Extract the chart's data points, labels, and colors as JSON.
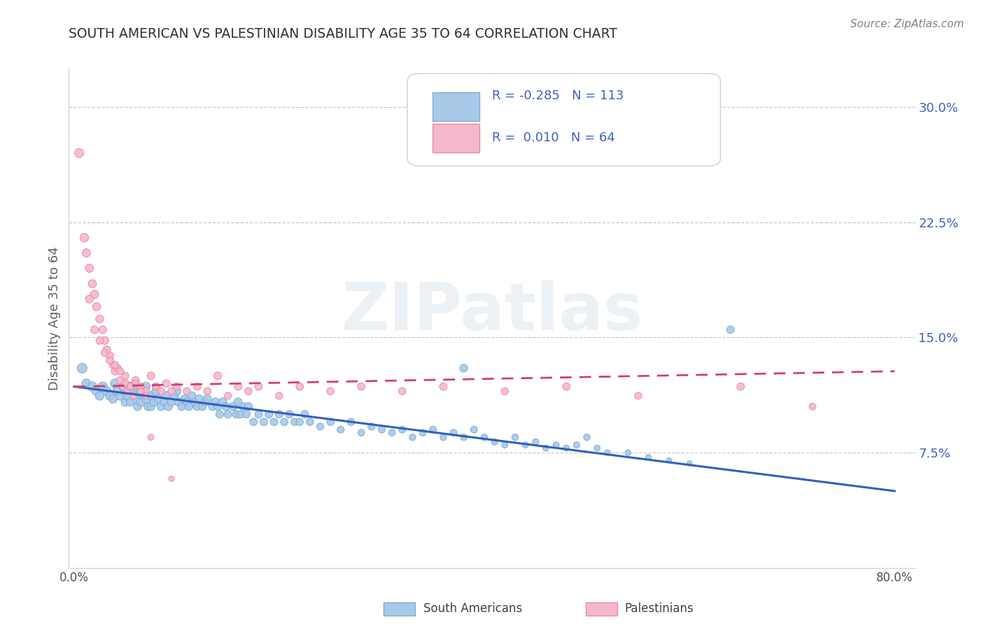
{
  "title": "SOUTH AMERICAN VS PALESTINIAN DISABILITY AGE 35 TO 64 CORRELATION CHART",
  "source": "Source: ZipAtlas.com",
  "ylabel": "Disability Age 35 to 64",
  "xlim": [
    -0.005,
    0.82
  ],
  "ylim": [
    0.0,
    0.325
  ],
  "ytick_positions": [
    0.075,
    0.15,
    0.225,
    0.3
  ],
  "ytick_labels": [
    "7.5%",
    "15.0%",
    "22.5%",
    "30.0%"
  ],
  "trend_blue_start": 0.118,
  "trend_blue_end": 0.05,
  "trend_pink_start": 0.118,
  "trend_pink_end": 0.128,
  "blue_scatter_color": "#a8c8e8",
  "blue_scatter_edge": "#7bafd4",
  "pink_scatter_color": "#f5b8cb",
  "pink_scatter_edge": "#e88aaa",
  "trend_blue_color": "#3060c0",
  "trend_pink_color": "#d04070",
  "legend_text_color": "#4060c0",
  "title_color": "#303030",
  "watermark": "ZIPatlas",
  "south_american_x": [
    0.008,
    0.012,
    0.018,
    0.022,
    0.025,
    0.028,
    0.032,
    0.035,
    0.038,
    0.04,
    0.042,
    0.045,
    0.048,
    0.05,
    0.05,
    0.052,
    0.055,
    0.055,
    0.058,
    0.06,
    0.06,
    0.062,
    0.065,
    0.065,
    0.068,
    0.07,
    0.07,
    0.072,
    0.075,
    0.075,
    0.078,
    0.08,
    0.082,
    0.085,
    0.088,
    0.09,
    0.092,
    0.095,
    0.098,
    0.1,
    0.102,
    0.105,
    0.108,
    0.11,
    0.112,
    0.115,
    0.118,
    0.12,
    0.122,
    0.125,
    0.128,
    0.13,
    0.135,
    0.138,
    0.14,
    0.142,
    0.145,
    0.148,
    0.15,
    0.155,
    0.158,
    0.16,
    0.162,
    0.165,
    0.168,
    0.17,
    0.175,
    0.18,
    0.185,
    0.19,
    0.195,
    0.2,
    0.205,
    0.21,
    0.215,
    0.22,
    0.225,
    0.23,
    0.24,
    0.25,
    0.26,
    0.27,
    0.28,
    0.29,
    0.3,
    0.31,
    0.32,
    0.33,
    0.34,
    0.35,
    0.36,
    0.37,
    0.38,
    0.39,
    0.4,
    0.38,
    0.41,
    0.42,
    0.43,
    0.44,
    0.45,
    0.46,
    0.47,
    0.48,
    0.49,
    0.5,
    0.51,
    0.52,
    0.54,
    0.56,
    0.58,
    0.6,
    0.64
  ],
  "south_american_y": [
    0.13,
    0.12,
    0.118,
    0.115,
    0.112,
    0.118,
    0.115,
    0.112,
    0.11,
    0.12,
    0.115,
    0.112,
    0.118,
    0.115,
    0.108,
    0.112,
    0.118,
    0.108,
    0.115,
    0.118,
    0.11,
    0.105,
    0.115,
    0.108,
    0.112,
    0.118,
    0.11,
    0.105,
    0.112,
    0.105,
    0.108,
    0.115,
    0.11,
    0.105,
    0.108,
    0.112,
    0.105,
    0.108,
    0.112,
    0.115,
    0.108,
    0.105,
    0.11,
    0.108,
    0.105,
    0.112,
    0.108,
    0.105,
    0.11,
    0.105,
    0.108,
    0.11,
    0.105,
    0.108,
    0.105,
    0.1,
    0.108,
    0.105,
    0.1,
    0.105,
    0.1,
    0.108,
    0.1,
    0.105,
    0.1,
    0.105,
    0.095,
    0.1,
    0.095,
    0.1,
    0.095,
    0.1,
    0.095,
    0.1,
    0.095,
    0.095,
    0.1,
    0.095,
    0.092,
    0.095,
    0.09,
    0.095,
    0.088,
    0.092,
    0.09,
    0.088,
    0.09,
    0.085,
    0.088,
    0.09,
    0.085,
    0.088,
    0.085,
    0.09,
    0.085,
    0.13,
    0.082,
    0.08,
    0.085,
    0.08,
    0.082,
    0.078,
    0.08,
    0.078,
    0.08,
    0.085,
    0.078,
    0.075,
    0.075,
    0.072,
    0.07,
    0.068,
    0.155
  ],
  "south_american_size": [
    100,
    85,
    90,
    85,
    80,
    90,
    85,
    80,
    78,
    88,
    82,
    78,
    85,
    82,
    75,
    78,
    82,
    72,
    78,
    82,
    75,
    70,
    78,
    72,
    75,
    80,
    72,
    68,
    75,
    68,
    72,
    78,
    72,
    68,
    70,
    75,
    68,
    70,
    72,
    75,
    70,
    65,
    70,
    68,
    65,
    70,
    68,
    65,
    68,
    65,
    68,
    70,
    65,
    68,
    65,
    62,
    68,
    65,
    62,
    65,
    60,
    68,
    60,
    65,
    60,
    65,
    58,
    62,
    58,
    62,
    58,
    62,
    58,
    62,
    55,
    58,
    62,
    55,
    52,
    55,
    50,
    55,
    48,
    52,
    50,
    48,
    50,
    45,
    48,
    50,
    45,
    48,
    45,
    50,
    45,
    65,
    42,
    40,
    45,
    40,
    42,
    38,
    40,
    38,
    40,
    45,
    38,
    35,
    35,
    32,
    30,
    28,
    60
  ],
  "palestinian_x": [
    0.005,
    0.01,
    0.012,
    0.015,
    0.018,
    0.02,
    0.022,
    0.025,
    0.028,
    0.03,
    0.032,
    0.035,
    0.038,
    0.04,
    0.042,
    0.045,
    0.048,
    0.05,
    0.052,
    0.055,
    0.058,
    0.06,
    0.065,
    0.07,
    0.075,
    0.08,
    0.085,
    0.09,
    0.095,
    0.1,
    0.11,
    0.12,
    0.13,
    0.14,
    0.15,
    0.16,
    0.17,
    0.18,
    0.2,
    0.22,
    0.25,
    0.28,
    0.32,
    0.36,
    0.42,
    0.48,
    0.55,
    0.65,
    0.72,
    0.02,
    0.03,
    0.04,
    0.05,
    0.06,
    0.025,
    0.035,
    0.015,
    0.055,
    0.065,
    0.045,
    0.07,
    0.08,
    0.075,
    0.095
  ],
  "palestinian_y": [
    0.27,
    0.215,
    0.205,
    0.195,
    0.185,
    0.178,
    0.17,
    0.162,
    0.155,
    0.148,
    0.142,
    0.138,
    0.132,
    0.128,
    0.13,
    0.122,
    0.118,
    0.12,
    0.115,
    0.118,
    0.112,
    0.122,
    0.118,
    0.115,
    0.125,
    0.118,
    0.115,
    0.12,
    0.115,
    0.118,
    0.115,
    0.118,
    0.115,
    0.125,
    0.112,
    0.118,
    0.115,
    0.118,
    0.112,
    0.118,
    0.115,
    0.118,
    0.115,
    0.118,
    0.115,
    0.118,
    0.112,
    0.118,
    0.105,
    0.155,
    0.14,
    0.132,
    0.125,
    0.12,
    0.148,
    0.135,
    0.175,
    0.118,
    0.115,
    0.128,
    0.112,
    0.118,
    0.085,
    0.058
  ],
  "palestinian_size": [
    85,
    78,
    72,
    70,
    68,
    72,
    68,
    65,
    62,
    65,
    62,
    62,
    58,
    60,
    62,
    58,
    55,
    60,
    55,
    58,
    52,
    60,
    58,
    55,
    62,
    58,
    55,
    60,
    55,
    58,
    55,
    58,
    55,
    62,
    52,
    58,
    55,
    58,
    52,
    58,
    55,
    58,
    55,
    58,
    55,
    58,
    52,
    58,
    48,
    62,
    58,
    55,
    52,
    50,
    60,
    55,
    65,
    48,
    45,
    52,
    42,
    48,
    38,
    32
  ]
}
